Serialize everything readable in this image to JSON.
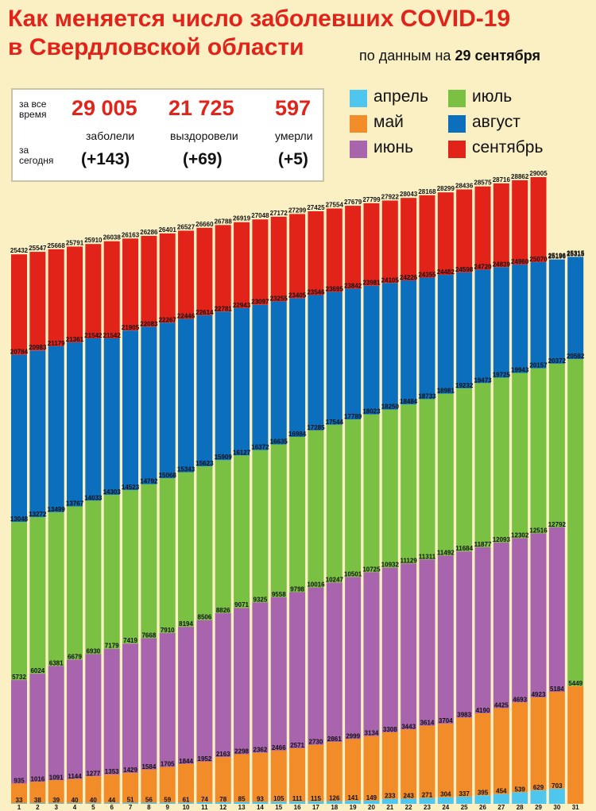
{
  "title_line1": "Как  меняется число  заболевших COVID-19",
  "title_line2": "в Свердловской области",
  "subtitle_prefix": "по данным на",
  "subtitle_date": "29 сентября",
  "stats": {
    "label_all_time": [
      "за все",
      "время"
    ],
    "label_today": [
      "за",
      "сегодня"
    ],
    "items": [
      {
        "total": "29 005",
        "caption": "заболели",
        "today": "(+143)"
      },
      {
        "total": "21 725",
        "caption": "выздоровели",
        "today": "(+69)"
      },
      {
        "total": "597",
        "caption": "умерли",
        "today": "(+5)"
      }
    ]
  },
  "colors": {
    "april": "#4ec6ee",
    "may": "#f28c28",
    "june": "#a864ac",
    "july": "#7ac143",
    "august": "#0b6fbd",
    "september": "#e2231a",
    "title": "#e2231a",
    "background": "#fbf0c4"
  },
  "legend": [
    {
      "label": "апрель",
      "color_key": "april"
    },
    {
      "label": "июль",
      "color_key": "july"
    },
    {
      "label": "май",
      "color_key": "may"
    },
    {
      "label": "август",
      "color_key": "august"
    },
    {
      "label": "июнь",
      "color_key": "june"
    },
    {
      "label": "сентябрь",
      "color_key": "september"
    }
  ],
  "chart_data": {
    "type": "bar",
    "stacked": true,
    "categories": [
      "1",
      "2",
      "3",
      "4",
      "5",
      "6",
      "7",
      "8",
      "9",
      "10",
      "11",
      "12",
      "13",
      "14",
      "15",
      "16",
      "17",
      "18",
      "19",
      "20",
      "21",
      "22",
      "23",
      "24",
      "25",
      "26",
      "27",
      "28",
      "29",
      "30",
      "31"
    ],
    "series_order": [
      "april",
      "may",
      "june",
      "july",
      "august",
      "september"
    ],
    "boundaries": {
      "april_end": [
        33,
        38,
        39,
        40,
        40,
        44,
        51,
        56,
        59,
        61,
        74,
        78,
        85,
        93,
        105,
        111,
        115,
        126,
        141,
        149,
        233,
        243,
        271,
        304,
        337,
        395,
        454,
        539,
        629,
        703,
        null
      ],
      "may_end": [
        935,
        1016,
        1091,
        1144,
        1277,
        1353,
        1429,
        1584,
        1705,
        1844,
        1952,
        2163,
        2298,
        2362,
        2466,
        2571,
        2730,
        2861,
        2999,
        3134,
        3308,
        3443,
        3614,
        3704,
        3983,
        4190,
        4425,
        4693,
        4923,
        5184,
        5449
      ],
      "june_end": [
        5732,
        6024,
        6381,
        6679,
        6930,
        7179,
        7419,
        7668,
        7910,
        8194,
        8506,
        8826,
        9071,
        9325,
        9558,
        9798,
        10016,
        10247,
        10501,
        10725,
        10932,
        11129,
        11311,
        11492,
        11684,
        11877,
        12093,
        12302,
        12516,
        12792,
        null
      ],
      "july_end": [
        13048,
        13272,
        13499,
        13767,
        14033,
        14303,
        14523,
        14792,
        15068,
        15343,
        15623,
        15909,
        16127,
        16372,
        16635,
        16984,
        17285,
        17544,
        17789,
        18023,
        18250,
        18484,
        18733,
        18981,
        19232,
        19473,
        19725,
        19943,
        20157,
        20372,
        20582
      ],
      "august_end": [
        20784,
        20983,
        21179,
        21361,
        21542,
        21542,
        21905,
        22083,
        22267,
        22446,
        22614,
        22781,
        22943,
        23097,
        23255,
        23405,
        23546,
        23695,
        23842,
        23981,
        24105,
        24226,
        24355,
        24482,
        24598,
        24720,
        24839,
        24960,
        25070,
        25196,
        25315
      ],
      "total": [
        25432,
        25547,
        25668,
        25791,
        25910,
        26038,
        26163,
        26286,
        26401,
        26527,
        26660,
        26788,
        26919,
        27048,
        27172,
        27299,
        27425,
        27554,
        27679,
        27799,
        27922,
        28043,
        28168,
        28299,
        28436,
        28575,
        28716,
        28862,
        29005,
        null,
        null
      ]
    },
    "top_labels": [
      "25432",
      "25547",
      "25668",
      "25791",
      "25910",
      "26038",
      "26163",
      "26286",
      "26401",
      "26527",
      "26660",
      "26788",
      "26919",
      "27048",
      "27172",
      "27299",
      "27425",
      "27554",
      "27679",
      "27799",
      "27922",
      "28043",
      "28168",
      "28299",
      "28436",
      "28575",
      "28716",
      "28862",
      "29005",
      "25196",
      "25315"
    ],
    "ylim": [
      0,
      29005
    ]
  }
}
